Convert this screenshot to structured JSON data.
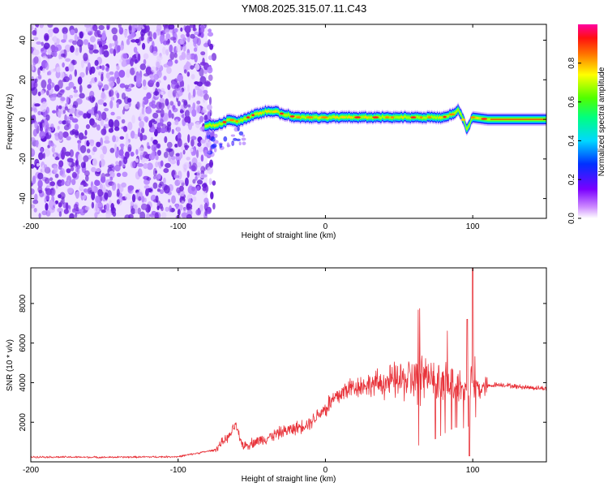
{
  "title": "YM08.2025.315.07.11.C43",
  "colors": {
    "snr_line": "#e8333a",
    "scatter_noise": "#7a2fe0",
    "background": "#ffffff"
  },
  "chart_data": [
    {
      "type": "heatmap",
      "title": "YM08.2025.315.07.11.C43",
      "xlabel": "Height of straight line (km)",
      "ylabel": "Frequency (Hz)",
      "xlim": [
        -200,
        150
      ],
      "ylim": [
        -50,
        48
      ],
      "x_ticks": [
        -200,
        -100,
        0,
        100
      ],
      "y_ticks": [
        -40,
        -20,
        0,
        20,
        40
      ],
      "colorbar": {
        "label": "Normalized spectral amplitude",
        "range": [
          0,
          1
        ],
        "ticks": [
          0.0,
          0.2,
          0.4,
          0.6,
          0.8
        ]
      },
      "noise_region_x": [
        -200,
        -80
      ],
      "signal_track": {
        "x": [
          -82,
          -75,
          -70,
          -65,
          -60,
          -55,
          -50,
          -45,
          -40,
          -35,
          -30,
          -25,
          -20,
          -10,
          0,
          10,
          20,
          40,
          60,
          80,
          88,
          90,
          93,
          96,
          100,
          110,
          120,
          150
        ],
        "frequency": [
          -3,
          -3,
          -2,
          0,
          -1,
          0,
          2,
          3,
          4,
          4,
          3,
          2,
          1,
          1,
          1,
          1,
          1,
          1,
          1,
          1,
          3,
          5,
          1,
          -5,
          1,
          0,
          0,
          0
        ]
      }
    },
    {
      "type": "line",
      "xlabel": "Height of straight line (km)",
      "ylabel": "SNR (10 * v/v)",
      "xlim": [
        -200,
        150
      ],
      "ylim": [
        0,
        9800
      ],
      "x_ticks": [
        -200,
        -100,
        0,
        100
      ],
      "y_ticks": [
        2000,
        4000,
        6000,
        8000
      ],
      "envelope": {
        "x": [
          -200,
          -150,
          -100,
          -75,
          -70,
          -65,
          -61,
          -58,
          -55,
          -50,
          -40,
          -30,
          -20,
          -10,
          -5,
          0,
          5,
          10,
          15,
          20,
          30,
          40,
          50,
          60,
          65,
          70,
          80,
          88,
          93,
          96,
          98,
          99,
          100,
          102,
          105,
          110,
          115,
          120,
          130,
          140,
          150
        ],
        "y": [
          250,
          230,
          260,
          600,
          1000,
          1300,
          1900,
          1100,
          800,
          950,
          1200,
          1500,
          1700,
          2000,
          2400,
          2700,
          3100,
          3400,
          3700,
          3800,
          3900,
          4000,
          4100,
          4200,
          4300,
          4200,
          4100,
          4000,
          3700,
          3500,
          3600,
          4500,
          3700,
          3800,
          3700,
          3800,
          3900,
          3900,
          3800,
          3750,
          3700
        ]
      }
    }
  ]
}
